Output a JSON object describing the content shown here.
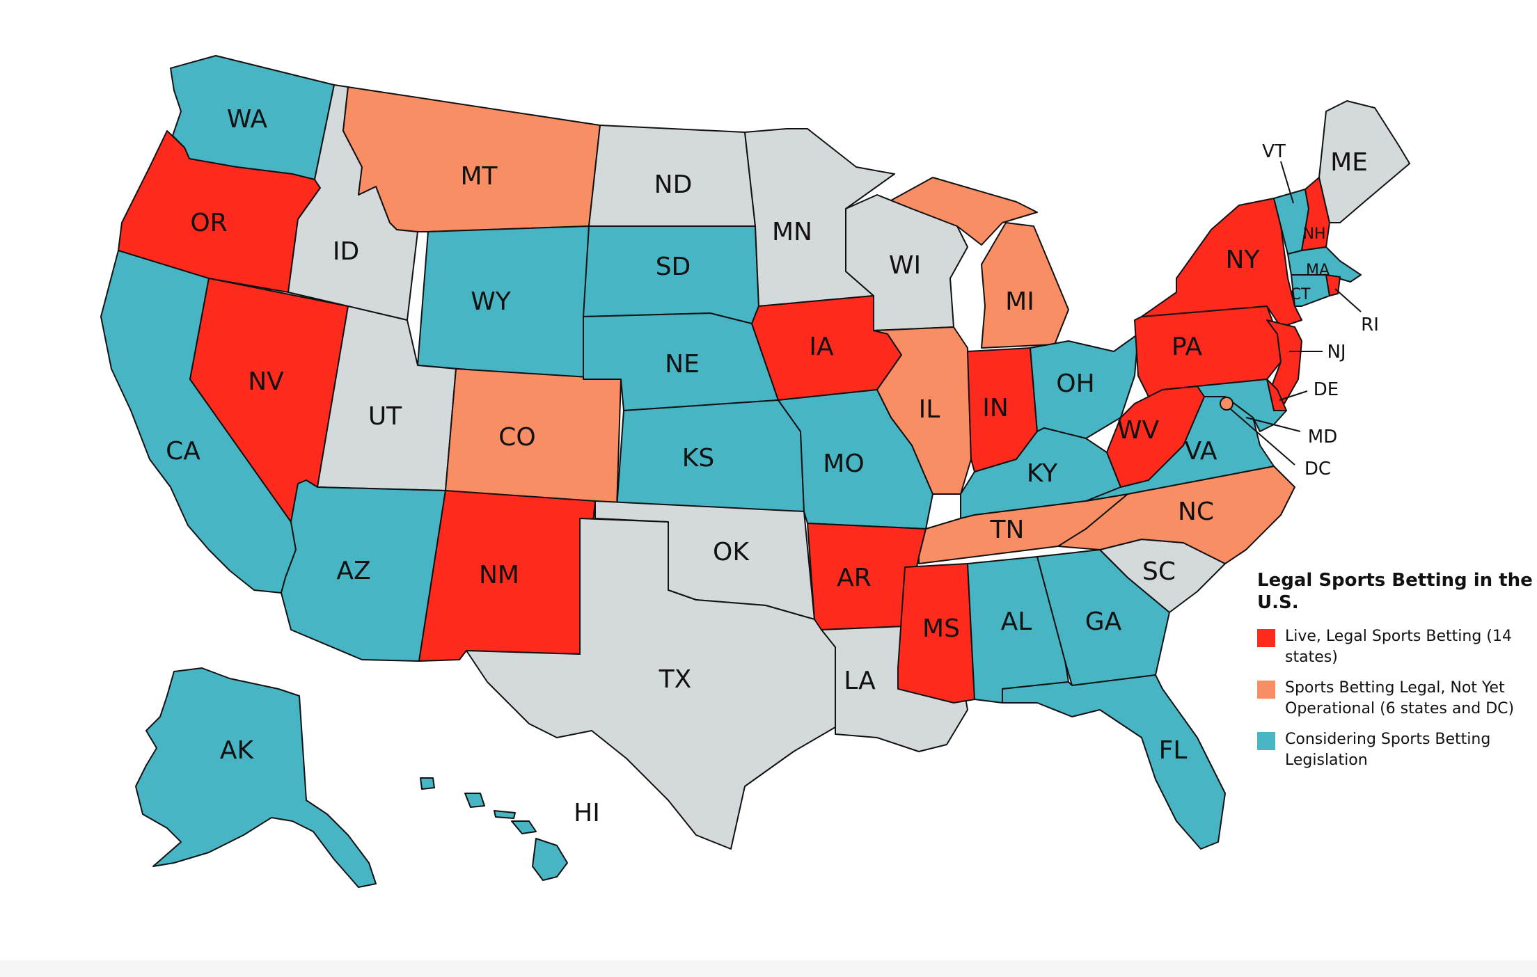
{
  "colors": {
    "live": "#ff2a1e",
    "legal_not_operational": "#f98e64",
    "considering": "#48b5c4",
    "none": "#d4d9dc",
    "border": "#111111"
  },
  "legend": {
    "title": "Legal Sports Betting in the U.S.",
    "items": [
      {
        "category": "live",
        "label": "Live, Legal Sports Betting (14 states)"
      },
      {
        "category": "legal_not_operational",
        "label": "Sports Betting Legal, Not Yet Operational (6 states and DC)"
      },
      {
        "category": "considering",
        "label": "Considering Sports Betting Legislation"
      }
    ]
  },
  "states": {
    "WA": {
      "label": "WA",
      "category": "considering"
    },
    "OR": {
      "label": "OR",
      "category": "live"
    },
    "CA": {
      "label": "CA",
      "category": "considering"
    },
    "NV": {
      "label": "NV",
      "category": "live"
    },
    "ID": {
      "label": "ID",
      "category": "none"
    },
    "MT": {
      "label": "MT",
      "category": "legal_not_operational"
    },
    "WY": {
      "label": "WY",
      "category": "considering"
    },
    "UT": {
      "label": "UT",
      "category": "none"
    },
    "CO": {
      "label": "CO",
      "category": "legal_not_operational"
    },
    "AZ": {
      "label": "AZ",
      "category": "considering"
    },
    "NM": {
      "label": "NM",
      "category": "live"
    },
    "ND": {
      "label": "ND",
      "category": "none"
    },
    "SD": {
      "label": "SD",
      "category": "considering"
    },
    "NE": {
      "label": "NE",
      "category": "considering"
    },
    "KS": {
      "label": "KS",
      "category": "considering"
    },
    "OK": {
      "label": "OK",
      "category": "none"
    },
    "TX": {
      "label": "TX",
      "category": "none"
    },
    "MN": {
      "label": "MN",
      "category": "none"
    },
    "IA": {
      "label": "IA",
      "category": "live"
    },
    "MO": {
      "label": "MO",
      "category": "considering"
    },
    "AR": {
      "label": "AR",
      "category": "live"
    },
    "LA": {
      "label": "LA",
      "category": "none"
    },
    "WI": {
      "label": "WI",
      "category": "none"
    },
    "IL": {
      "label": "IL",
      "category": "legal_not_operational"
    },
    "MI": {
      "label": "MI",
      "category": "legal_not_operational"
    },
    "IN": {
      "label": "IN",
      "category": "live"
    },
    "OH": {
      "label": "OH",
      "category": "considering"
    },
    "KY": {
      "label": "KY",
      "category": "considering"
    },
    "TN": {
      "label": "TN",
      "category": "legal_not_operational"
    },
    "MS": {
      "label": "MS",
      "category": "live"
    },
    "AL": {
      "label": "AL",
      "category": "considering"
    },
    "GA": {
      "label": "GA",
      "category": "considering"
    },
    "FL": {
      "label": "FL",
      "category": "considering"
    },
    "SC": {
      "label": "SC",
      "category": "none"
    },
    "NC": {
      "label": "NC",
      "category": "legal_not_operational"
    },
    "VA": {
      "label": "VA",
      "category": "considering"
    },
    "WV": {
      "label": "WV",
      "category": "live"
    },
    "PA": {
      "label": "PA",
      "category": "live"
    },
    "NY": {
      "label": "NY",
      "category": "live"
    },
    "VT": {
      "label": "VT",
      "category": "considering"
    },
    "NH": {
      "label": "NH",
      "category": "live"
    },
    "ME": {
      "label": "ME",
      "category": "none"
    },
    "MA": {
      "label": "MA",
      "category": "considering"
    },
    "CT": {
      "label": "CT",
      "category": "considering"
    },
    "RI": {
      "label": "RI",
      "category": "live"
    },
    "NJ": {
      "label": "NJ",
      "category": "live"
    },
    "DE": {
      "label": "DE",
      "category": "live"
    },
    "MD": {
      "label": "MD",
      "category": "considering"
    },
    "DC": {
      "label": "DC",
      "category": "legal_not_operational"
    },
    "AK": {
      "label": "AK",
      "category": "considering"
    },
    "HI": {
      "label": "HI",
      "category": "considering"
    }
  }
}
